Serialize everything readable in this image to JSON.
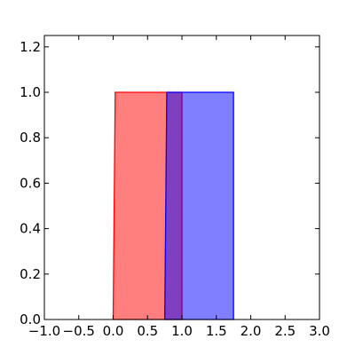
{
  "chart_data": {
    "type": "area",
    "title": "",
    "xlabel": "",
    "ylabel": "",
    "xlim": [
      -1.0,
      3.0
    ],
    "ylim": [
      0.0,
      1.25
    ],
    "grid": false,
    "x_ticks": [
      -1.0,
      -0.5,
      0.0,
      0.5,
      1.0,
      1.5,
      2.0,
      2.5,
      3.0
    ],
    "x_tick_labels": [
      "−1.0",
      "−0.5",
      "0.0",
      "0.5",
      "1.0",
      "1.5",
      "2.0",
      "2.5",
      "3.0"
    ],
    "y_ticks": [
      0.0,
      0.2,
      0.4,
      0.6,
      0.8,
      1.0,
      1.2
    ],
    "y_tick_labels": [
      "0.0",
      "0.2",
      "0.4",
      "0.6",
      "0.8",
      "1.0",
      "1.2"
    ],
    "series": [
      {
        "color": "#ff0000",
        "fill_color": "#ff0000",
        "fill_alpha": 0.5,
        "points": [
          [
            0.0,
            0.0
          ],
          [
            0.03,
            1.0
          ],
          [
            1.0,
            1.0
          ],
          [
            1.0,
            0.0
          ]
        ]
      },
      {
        "color": "#0000ff",
        "fill_color": "#0000ff",
        "fill_alpha": 0.5,
        "points": [
          [
            0.75,
            0.0
          ],
          [
            0.78,
            1.0
          ],
          [
            1.75,
            1.0
          ],
          [
            1.75,
            0.0
          ]
        ]
      }
    ]
  }
}
